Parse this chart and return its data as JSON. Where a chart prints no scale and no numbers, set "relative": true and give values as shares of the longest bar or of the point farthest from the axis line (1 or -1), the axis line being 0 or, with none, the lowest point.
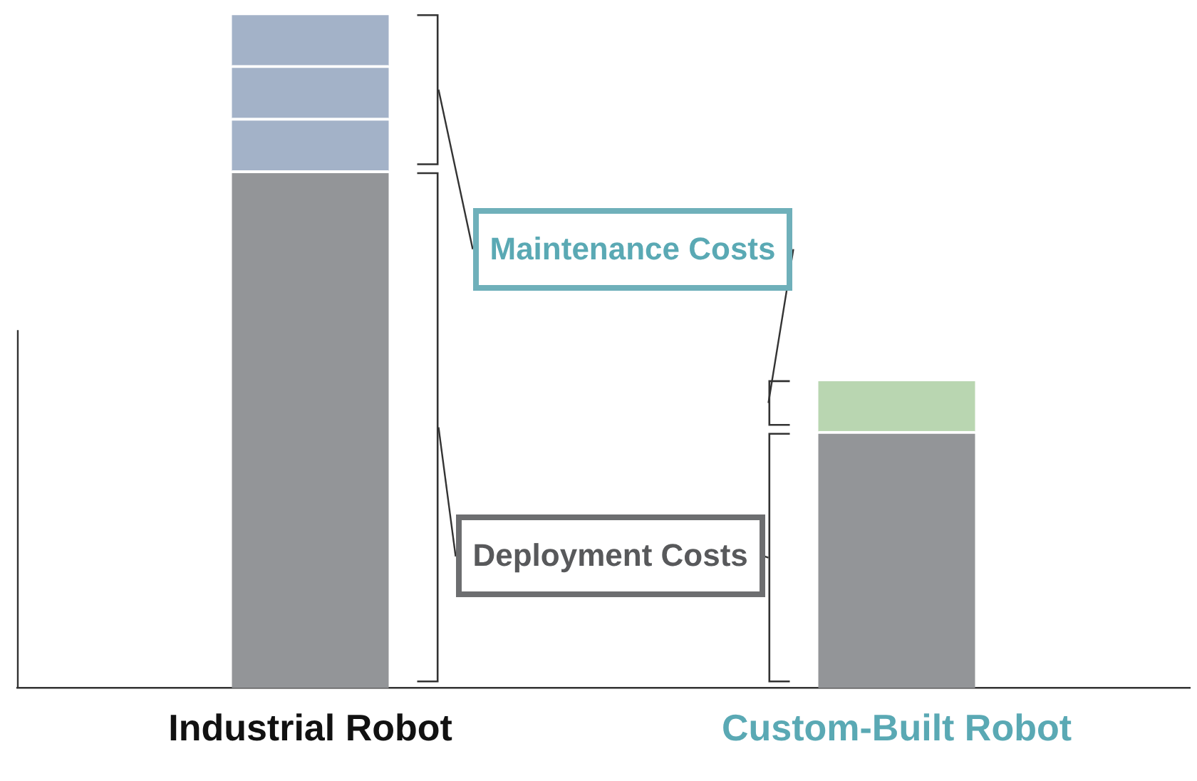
{
  "chart_data": {
    "type": "bar",
    "relative": true,
    "stacked": true,
    "categories": [
      "Industrial Robot",
      "Custom-Built Robot"
    ],
    "series": [
      {
        "color": "#939598",
        "values": [
          0.766,
          0.38
        ]
      },
      {
        "colors": [
          "#a3b2c8",
          "#b9d6b1"
        ],
        "values": [
          0.078,
          0.078
        ]
      },
      {
        "colors": [
          "#a3b2c8",
          "#b9d6b1"
        ],
        "values": [
          0.078,
          null
        ]
      },
      {
        "colors": [
          "#a3b2c8",
          "#b9d6b1"
        ],
        "values": [
          0.078,
          null
        ]
      }
    ],
    "annotations": [
      "Deployment Costs",
      "Maintenance Costs"
    ],
    "grid": false,
    "legend": false
  }
}
